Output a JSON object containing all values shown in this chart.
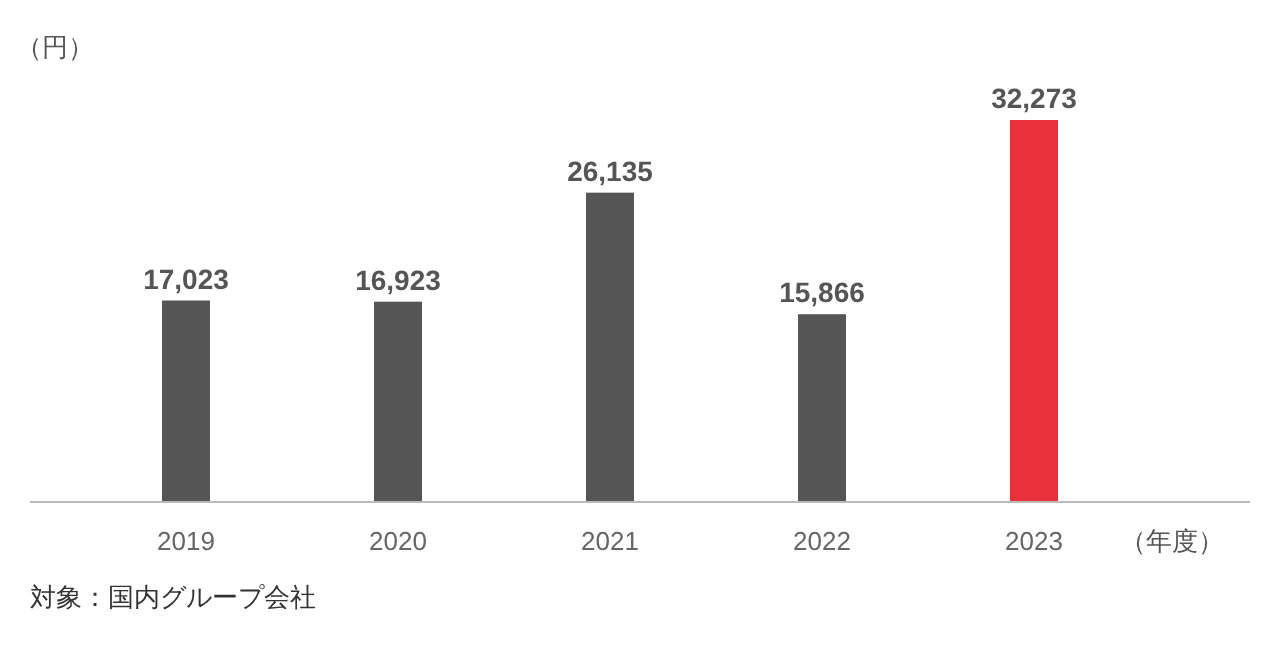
{
  "chart_data": {
    "type": "bar",
    "categories": [
      "2019",
      "2020",
      "2021",
      "2022",
      "2023"
    ],
    "values": [
      17023,
      16923,
      26135,
      15866,
      32273
    ],
    "value_labels": [
      "17,023",
      "16,923",
      "26,135",
      "15,866",
      "32,273"
    ],
    "colors": [
      "#555555",
      "#555555",
      "#555555",
      "#555555",
      "#e8313a"
    ],
    "ylabel": "（円）",
    "xlabel": "（年度）",
    "annotations": [
      "対象：国内グループ会社"
    ]
  }
}
